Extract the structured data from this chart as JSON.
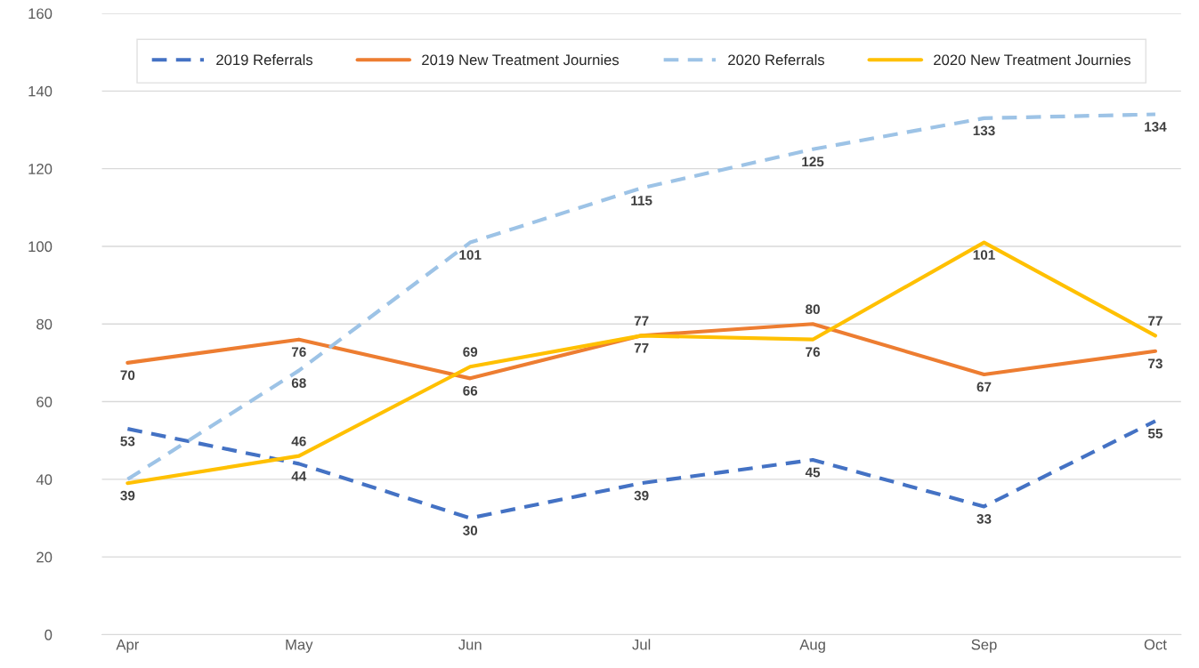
{
  "chart_data": {
    "type": "line",
    "categories": [
      "Apr",
      "May",
      "Jun",
      "Jul",
      "Aug",
      "Sep",
      "Oct"
    ],
    "series": [
      {
        "name": "2019 Referrals",
        "color": "#4472c4",
        "line_style": "dashed",
        "values": [
          53,
          44,
          30,
          39,
          45,
          33,
          55
        ],
        "value_labels": [
          "53",
          "44",
          "30",
          "39",
          "45",
          "33",
          "55"
        ]
      },
      {
        "name": "2019 New Treatment Journies",
        "color": "#ed7d31",
        "line_style": "solid",
        "values": [
          70,
          76,
          66,
          77,
          80,
          67,
          73
        ],
        "value_labels": [
          "70",
          "76",
          "66",
          "77",
          "80",
          "67",
          "73"
        ]
      },
      {
        "name": "2020 Referrals",
        "color": "#9dc3e6",
        "line_style": "dashed",
        "values": [
          40,
          68,
          101,
          115,
          125,
          133,
          134
        ],
        "value_labels": [
          null,
          "68",
          "101",
          "115",
          "125",
          "133",
          "134"
        ]
      },
      {
        "name": "2020 New Treatment Journies",
        "color": "#ffc000",
        "line_style": "solid",
        "values": [
          39,
          46,
          69,
          77,
          76,
          101,
          77
        ],
        "value_labels": [
          "39",
          "46",
          "69",
          "77",
          "76",
          "101",
          "77"
        ]
      }
    ],
    "ylim": [
      0,
      160
    ],
    "yticks": [
      0,
      20,
      40,
      60,
      80,
      100,
      120,
      140,
      160
    ],
    "grid": "y",
    "legend": "top",
    "marker": "none"
  }
}
